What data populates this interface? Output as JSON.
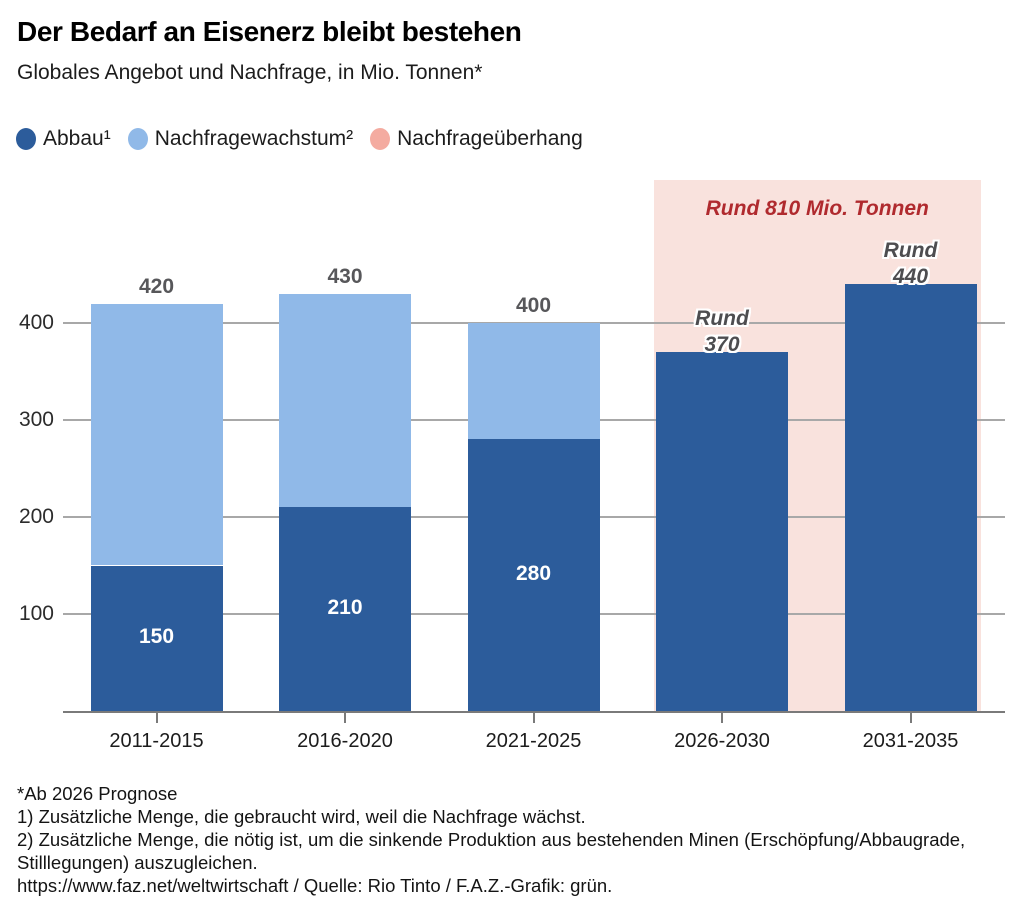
{
  "page": {
    "title": "Der Bedarf an Eisenerz bleibt bestehen",
    "subtitle": "Globales Angebot und Nachfrage, in Mio. Tonnen*"
  },
  "legend": {
    "items": [
      {
        "label": "Abbau¹",
        "color": "#2c5c9b"
      },
      {
        "label": "Nachfragewachstum²",
        "color": "#90b9e8"
      },
      {
        "label": "Nachfrageüberhang",
        "color": "#f4aba0"
      }
    ]
  },
  "chart_data": {
    "type": "bar",
    "stacked": true,
    "title": "Der Bedarf an Eisenerz bleibt bestehen",
    "subtitle": "Globales Angebot und Nachfrage, in Mio. Tonnen*",
    "unit": "Mio. Tonnen",
    "categories": [
      "2011-2015",
      "2016-2020",
      "2021-2025",
      "2026-2030",
      "2031-2035"
    ],
    "series": [
      {
        "name": "Abbau",
        "color": "#2c5c9b",
        "values": [
          150,
          210,
          280,
          370,
          440
        ]
      },
      {
        "name": "Nachfragewachstum",
        "color": "#90b9e8",
        "values": [
          270,
          220,
          120,
          0,
          0
        ]
      }
    ],
    "totals": [
      420,
      430,
      400,
      370,
      440
    ],
    "yticks": [
      100,
      200,
      300,
      400
    ],
    "ylim": [
      0,
      480
    ],
    "grid": true,
    "legend_position": "top",
    "bar_labels": {
      "above": [
        "420",
        "430",
        "400",
        null,
        null
      ],
      "inside": [
        "150",
        "210",
        "280",
        null,
        null
      ],
      "forecast": [
        null,
        null,
        null,
        [
          "Rund",
          "370"
        ],
        [
          "Rund",
          "440"
        ]
      ]
    },
    "forecast_region": {
      "from_category": "2026-2030",
      "to_category": "2031-2035",
      "annotation": "Rund 810 Mio. Tonnen",
      "fill_color": "#f9e2dd",
      "annotation_color": "#b02a2e"
    }
  },
  "footnotes": {
    "line1": "*Ab 2026 Prognose",
    "line2": "1) Zusätzliche Menge, die gebraucht wird, weil die Nachfrage wächst.",
    "line3": "2) Zusätzliche Menge, die nötig ist, um die sinkende Produktion aus bestehenden Minen (Erschöpfung/Abbaugrade, Stilllegungen) auszugleichen.",
    "line4": "https://www.faz.net/weltwirtschaft / Quelle: Rio Tinto / F.A.Z.-Grafik: grün."
  }
}
